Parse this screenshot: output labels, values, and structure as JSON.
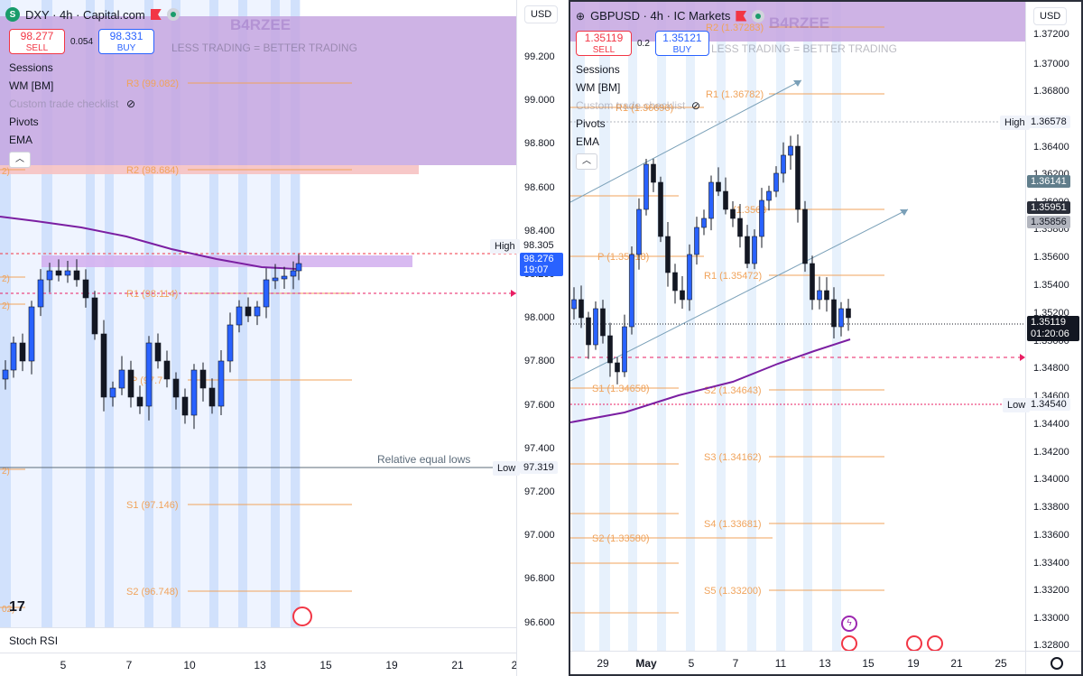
{
  "left": {
    "currency": "USD",
    "symbol": "DXY · 4h · Capital.com",
    "symbol_icon": "S",
    "watermark": "B4RZEE",
    "tagline": "LESS TRADING = BETTER TRADING",
    "sell": {
      "price": "98.277",
      "label": "SELL"
    },
    "buy": {
      "price": "98.331",
      "label": "BUY"
    },
    "spread": "0.054",
    "indicators": [
      "Sessions",
      "WM [BM]",
      "Custom trade checklist",
      "Pivots",
      "EMA"
    ],
    "price_ticks": [
      "99.200",
      "99.000",
      "98.800",
      "98.600",
      "98.400",
      "98.200",
      "98.000",
      "97.800",
      "97.600",
      "97.400",
      "97.200",
      "97.000",
      "96.800",
      "96.600"
    ],
    "pivots": [
      "R3 (99.082)",
      "R2 (98.684)",
      "R1 (98.114)",
      "P (97.7",
      "S1 (97.146)",
      "S2 (96.748)"
    ],
    "edge_labels": [
      "2)",
      "2)",
      "2)",
      "02)",
      "2)"
    ],
    "high_label": "High",
    "high_value": "98.305",
    "current_price": "98.276",
    "countdown": "19:07",
    "low_label": "Low",
    "low_value": "97.319",
    "equal_lows": "Relative equal lows",
    "x_ticks": [
      "5",
      "7",
      "10",
      "13",
      "15",
      "19",
      "21",
      "2"
    ],
    "panel": "Stoch RSI",
    "logo": "17"
  },
  "right": {
    "currency": "USD",
    "symbol": "GBPUSD · 4h · IC Markets",
    "watermark": "B4RZEE",
    "tagline": "LESS TRADING = BETTER TRADING",
    "sell": {
      "price": "1.35119",
      "label": "SELL"
    },
    "buy": {
      "price": "1.35121",
      "label": "BUY"
    },
    "spread": "0.2",
    "indicators": [
      "Sessions",
      "WM [BM]",
      "Custom trade checklist",
      "Pivots",
      "EMA"
    ],
    "price_ticks": [
      "1.37200",
      "1.37000",
      "1.36800",
      "1.36400",
      "1.36200",
      "1.36000",
      "1.35800",
      "1.35600",
      "1.35400",
      "1.35200",
      "1.35000",
      "1.34800",
      "1.34600",
      "1.34400",
      "1.34200",
      "1.34000",
      "1.33800",
      "1.33600",
      "1.33400",
      "1.33200",
      "1.33000",
      "1.32800"
    ],
    "pivots": [
      "R2 (1.37283)",
      "R1 (1.36782)",
      "R1 (1.36696)",
      "P (1.35618)",
      "R1 (1.35472)",
      "S1 (1.34658)",
      "S2 (1.34643)",
      "S3 (1.34162)",
      "S4 (1.33681)",
      "S2 (1.33580)",
      "S5 (1.33200)",
      "(1.3563"
    ],
    "high_label": "High",
    "high_value": "1.36578",
    "tag_a": "1.36141",
    "tag_b": "1.35951",
    "tag_c": "1.35856",
    "current_price": "1.35119",
    "countdown": "01:20:06",
    "low_label": "Low",
    "low_value": "1.34540",
    "x_ticks": [
      "29",
      "May",
      "5",
      "7",
      "11",
      "13",
      "15",
      "19",
      "21",
      "25"
    ]
  },
  "colors": {
    "up": "#2962ff",
    "down": "#131722",
    "ema": "#7b1fa2",
    "pivot": "#f0a35b",
    "sell": "#f23645",
    "buy": "#2962ff"
  }
}
